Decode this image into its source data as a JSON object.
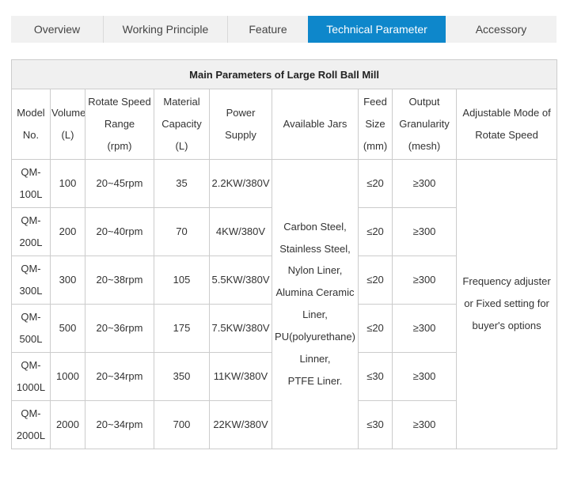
{
  "tabs": {
    "active_color": "#0e87cb",
    "items": [
      {
        "label": "Overview",
        "active": false
      },
      {
        "label": "Working Principle",
        "active": false
      },
      {
        "label": "Feature",
        "active": false
      },
      {
        "label": "Technical Parameter",
        "active": true
      },
      {
        "label": "Accessory",
        "active": false
      }
    ]
  },
  "table": {
    "title": "Main Parameters of Large Roll Ball Mill",
    "headers": [
      "Model\nNo.",
      "Volume\n(L)",
      "Rotate Speed\nRange\n(rpm)",
      "Material\nCapacity\n(L)",
      "Power\nSupply",
      "Available Jars",
      "Feed\nSize\n(mm)",
      "Output\nGranularity\n(mesh)",
      "Adjustable Mode of\nRotate Speed"
    ],
    "available_jars": "Carbon Steel,\nStainless Steel,\nNylon Liner,\nAlumina Ceramic\nLiner,\nPU(polyurethane)\nLinner,\nPTFE Liner.",
    "adjustable_mode": "Frequency adjuster\nor Fixed setting for\nbuyer's options",
    "rows": [
      {
        "model": "QM-\n100L",
        "volume": "100",
        "speed": "20~45rpm",
        "capacity": "35",
        "power": "2.2KW/380V",
        "feed": "≤20",
        "output": "≥300"
      },
      {
        "model": "QM-\n200L",
        "volume": "200",
        "speed": "20~40rpm",
        "capacity": "70",
        "power": "4KW/380V",
        "feed": "≤20",
        "output": "≥300"
      },
      {
        "model": "QM-\n300L",
        "volume": "300",
        "speed": "20~38rpm",
        "capacity": "105",
        "power": "5.5KW/380V",
        "feed": "≤20",
        "output": "≥300"
      },
      {
        "model": "QM-\n500L",
        "volume": "500",
        "speed": "20~36rpm",
        "capacity": "175",
        "power": "7.5KW/380V",
        "feed": "≤20",
        "output": "≥300"
      },
      {
        "model": "QM-\n1000L",
        "volume": "1000",
        "speed": "20~34rpm",
        "capacity": "350",
        "power": "11KW/380V",
        "feed": "≤30",
        "output": "≥300"
      },
      {
        "model": "QM-\n2000L",
        "volume": "2000",
        "speed": "20~34rpm",
        "capacity": "700",
        "power": "22KW/380V",
        "feed": "≤30",
        "output": "≥300"
      }
    ]
  }
}
